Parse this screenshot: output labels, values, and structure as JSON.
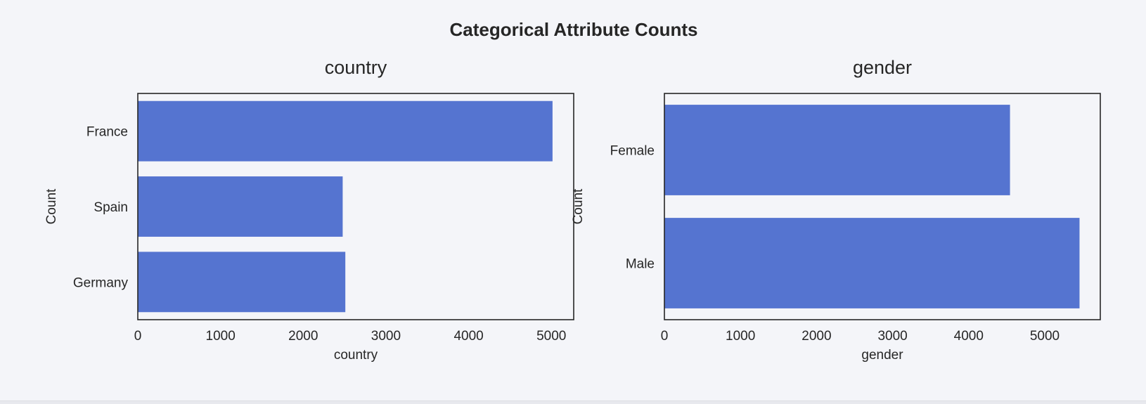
{
  "figure": {
    "title": "Categorical Attribute Counts"
  },
  "style": {
    "bar_color": "#5574d0",
    "background": "#f4f5f9",
    "text_color": "#262626",
    "frame_color": "#262626"
  },
  "chart_data": [
    {
      "type": "bar",
      "orientation": "horizontal",
      "title": "country",
      "xlabel": "country",
      "ylabel": "Count",
      "categories": [
        "France",
        "Spain",
        "Germany"
      ],
      "values": [
        5014,
        2477,
        2509
      ],
      "xlim": [
        0,
        5270
      ],
      "xticks": [
        0,
        1000,
        2000,
        3000,
        4000,
        5000
      ],
      "grid": false
    },
    {
      "type": "bar",
      "orientation": "horizontal",
      "title": "gender",
      "xlabel": "gender",
      "ylabel": "Count",
      "categories": [
        "Female",
        "Male"
      ],
      "values": [
        4543,
        5457
      ],
      "xlim": [
        0,
        5730
      ],
      "xticks": [
        0,
        1000,
        2000,
        3000,
        4000,
        5000
      ],
      "grid": false
    }
  ]
}
